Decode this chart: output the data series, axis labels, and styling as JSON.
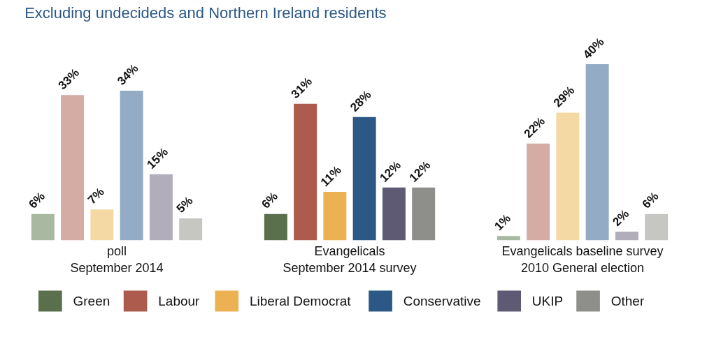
{
  "chart_data": [
    {
      "type": "bar",
      "subtitle": "Excluding undecideds and Northern Ireland residents",
      "xlabel": "poll\nSeptember 2014",
      "categories": [
        null
      ],
      "series": [
        {
          "color": "#a9b8a1",
          "values": [
            6
          ],
          "value_labels": [
            "6%"
          ]
        },
        {
          "color": "#d4aca4",
          "values": [
            33
          ],
          "value_labels": [
            "33%"
          ]
        },
        {
          "color": "#f5d9a5",
          "values": [
            7
          ],
          "value_labels": [
            "7%"
          ]
        },
        {
          "color": "#93abc4",
          "values": [
            34
          ],
          "value_labels": [
            "34%"
          ]
        },
        {
          "color": "#b1adbb",
          "values": [
            15
          ],
          "value_labels": [
            "15%"
          ]
        },
        {
          "color": "#c6c7c3",
          "values": [
            5
          ],
          "value_labels": [
            "5%"
          ]
        }
      ]
    },
    {
      "type": "bar",
      "xlabel": "Evangelicals\nSeptember 2014 survey",
      "categories": [
        null
      ],
      "legend": "bottom",
      "series": [
        {
          "name": "Green",
          "color": "#5a6f4c",
          "values": [
            6
          ],
          "value_labels": [
            "6%"
          ]
        },
        {
          "name": "Labour",
          "color": "#ad5b4c",
          "values": [
            31
          ],
          "value_labels": [
            "31%"
          ]
        },
        {
          "name": "Liberal Democrat",
          "color": "#ecb153",
          "values": [
            11
          ],
          "value_labels": [
            "11%"
          ]
        },
        {
          "name": "Conservative",
          "color": "#2c5886",
          "values": [
            28
          ],
          "value_labels": [
            "28%"
          ]
        },
        {
          "name": "UKIP",
          "color": "#5f5a73",
          "values": [
            12
          ],
          "value_labels": [
            "12%"
          ]
        },
        {
          "name": "Other",
          "color": "#8e8f8a",
          "values": [
            12
          ],
          "value_labels": [
            "12%"
          ]
        }
      ]
    },
    {
      "type": "bar",
      "xlabel": "Evangelicals baseline survey\n2010 General election",
      "categories": [
        null
      ],
      "series": [
        {
          "color": "#a9b8a1",
          "values": [
            1
          ],
          "value_labels": [
            "1%"
          ]
        },
        {
          "color": "#d4aca4",
          "values": [
            22
          ],
          "value_labels": [
            "22%"
          ]
        },
        {
          "color": "#f5d9a5",
          "values": [
            29
          ],
          "value_labels": [
            "29%"
          ]
        },
        {
          "color": "#93abc4",
          "values": [
            40
          ],
          "value_labels": [
            "40%"
          ]
        },
        {
          "color": "#b1adbb",
          "values": [
            2
          ],
          "value_labels": [
            "2%"
          ]
        },
        {
          "color": "#c6c7c3",
          "values": [
            6
          ],
          "value_labels": [
            "6%"
          ]
        }
      ]
    }
  ]
}
